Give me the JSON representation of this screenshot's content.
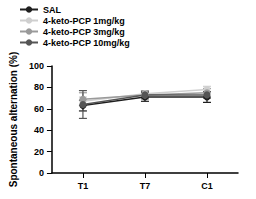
{
  "chart_data": {
    "type": "line",
    "y_label": "Spontaneous alternation (%)",
    "categories": [
      "T1",
      "T7",
      "C1"
    ],
    "series": [
      {
        "name": "SAL",
        "color": "#1f1f1f",
        "values": [
          63,
          71,
          71
        ],
        "errors": [
          5,
          4,
          5
        ]
      },
      {
        "name": "4-keto-PCP 1mg/kg",
        "color": "#cfcfcf",
        "values": [
          67,
          74,
          78
        ],
        "errors": [
          4,
          3,
          3
        ]
      },
      {
        "name": "4-keto-PCP 3mg/kg",
        "color": "#9a9a9a",
        "values": [
          69,
          73,
          75
        ],
        "errors": [
          6,
          4,
          4
        ]
      },
      {
        "name": "4-keto-PCP 10mg/kg",
        "color": "#555555",
        "values": [
          64,
          73,
          73
        ],
        "errors": [
          13,
          3,
          3
        ]
      }
    ],
    "ylim": [
      0,
      100
    ],
    "yticks": [
      0,
      20,
      40,
      60,
      80,
      100
    ],
    "grid": false,
    "legend": "top-left",
    "marker": "circle"
  }
}
